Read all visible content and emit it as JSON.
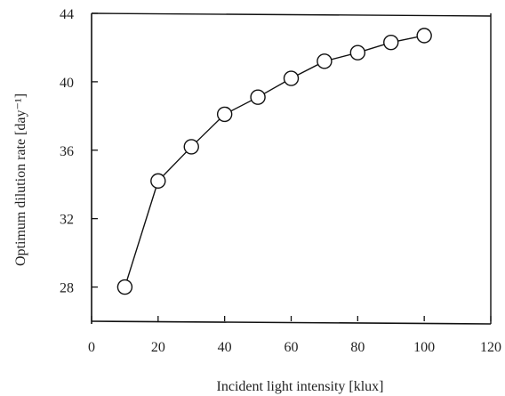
{
  "chart_data": {
    "type": "line",
    "title": "",
    "xlabel": "Incident light intensity [klux]",
    "ylabel": "Optimum dilution rate [day⁻¹]",
    "xlim": [
      0,
      120
    ],
    "ylim": [
      26,
      44
    ],
    "xticks": [
      0,
      20,
      40,
      60,
      80,
      100,
      120
    ],
    "yticks": [
      28,
      32,
      36,
      40,
      44
    ],
    "x_tick_labels": [
      "0",
      "20",
      "40",
      "60",
      "80",
      "100",
      "120"
    ],
    "y_tick_labels": [
      "28",
      "32",
      "36",
      "40",
      "44"
    ],
    "grid": false,
    "legend": "none",
    "marker": "open-circle",
    "series": [
      {
        "x": [
          10,
          20,
          30,
          40,
          50,
          60,
          70,
          80,
          90,
          100
        ],
        "y": [
          28.0,
          34.2,
          36.2,
          38.1,
          39.1,
          40.2,
          41.2,
          41.7,
          42.3,
          42.7
        ]
      }
    ]
  }
}
